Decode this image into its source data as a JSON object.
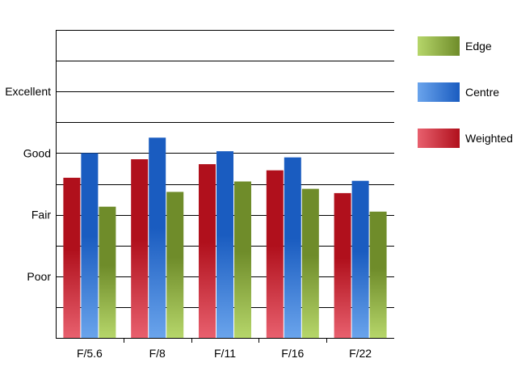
{
  "chart_data": {
    "type": "bar",
    "categories": [
      "F/5.6",
      "F/8",
      "F/11",
      "F/16",
      "F/22"
    ],
    "y_tick_labels": [
      {
        "value": 1,
        "label": "Poor"
      },
      {
        "value": 2,
        "label": "Fair"
      },
      {
        "value": 3,
        "label": "Good"
      },
      {
        "value": 4,
        "label": "Excellent"
      }
    ],
    "ylim": [
      0,
      5
    ],
    "gridline_step": 0.5,
    "series": [
      {
        "name": "Weighted",
        "values": [
          2.6,
          2.9,
          2.82,
          2.72,
          2.35
        ]
      },
      {
        "name": "Centre",
        "values": [
          3.0,
          3.25,
          3.03,
          2.93,
          2.55
        ]
      },
      {
        "name": "Edge",
        "values": [
          2.13,
          2.37,
          2.54,
          2.42,
          2.05
        ]
      }
    ],
    "legend": {
      "placement": "right",
      "order": [
        "Edge",
        "Centre",
        "Weighted"
      ]
    },
    "colors": {
      "Weighted": {
        "dark": "#b0101c",
        "light": "#e8606e"
      },
      "Centre": {
        "dark": "#1a5cc0",
        "light": "#6aa4ec"
      },
      "Edge": {
        "dark": "#6f8c2a",
        "light": "#b6d66a"
      }
    },
    "grid": true
  }
}
